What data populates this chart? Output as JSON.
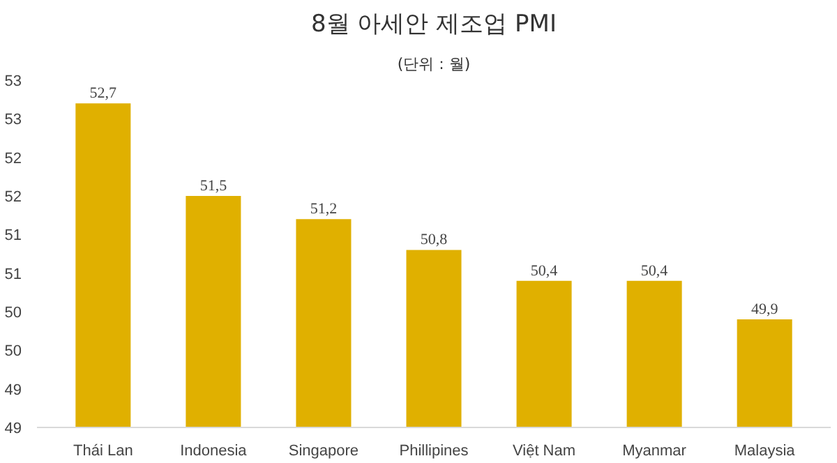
{
  "chart_data": {
    "type": "bar",
    "title": "8월 아세안 제조업 PMI",
    "subtitle": "(단위 : 월)",
    "categories": [
      "Thái Lan",
      "Indonesia",
      "Singapore",
      "Phillipines",
      "Việt Nam",
      "Myanmar",
      "Malaysia"
    ],
    "values": [
      52.7,
      51.5,
      51.2,
      50.8,
      50.4,
      50.4,
      49.9
    ],
    "value_labels": [
      "52,7",
      "51,5",
      "51,2",
      "50,8",
      "50,4",
      "50,4",
      "49,9"
    ],
    "color": "#e0b000",
    "ylim": [
      48.5,
      53.0
    ],
    "yticks": [
      {
        "value": 48.5,
        "label": "49"
      },
      {
        "value": 49.0,
        "label": "49"
      },
      {
        "value": 49.5,
        "label": "50"
      },
      {
        "value": 50.0,
        "label": "50"
      },
      {
        "value": 50.5,
        "label": "51"
      },
      {
        "value": 51.0,
        "label": "51"
      },
      {
        "value": 51.5,
        "label": "52"
      },
      {
        "value": 52.0,
        "label": "52"
      },
      {
        "value": 52.5,
        "label": "53"
      },
      {
        "value": 53.0,
        "label": "53"
      }
    ],
    "grid": false
  }
}
